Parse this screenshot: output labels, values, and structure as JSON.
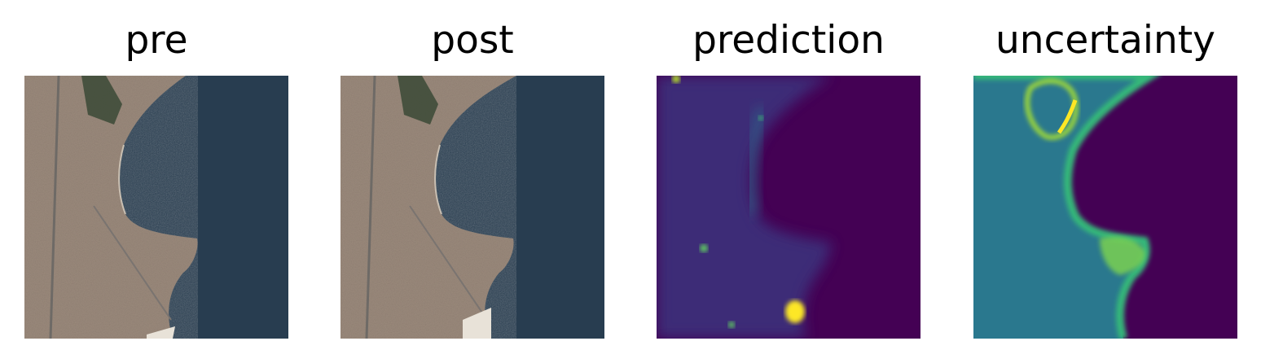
{
  "panels": [
    {
      "title": "pre"
    },
    {
      "title": "post"
    },
    {
      "title": "prediction"
    },
    {
      "title": "uncertainty"
    }
  ],
  "colors": {
    "sea": "#283d50",
    "land": "#9b8a7c",
    "viridis_low": "#440154",
    "viridis_mid": "#21918c",
    "viridis_high": "#fde725"
  }
}
